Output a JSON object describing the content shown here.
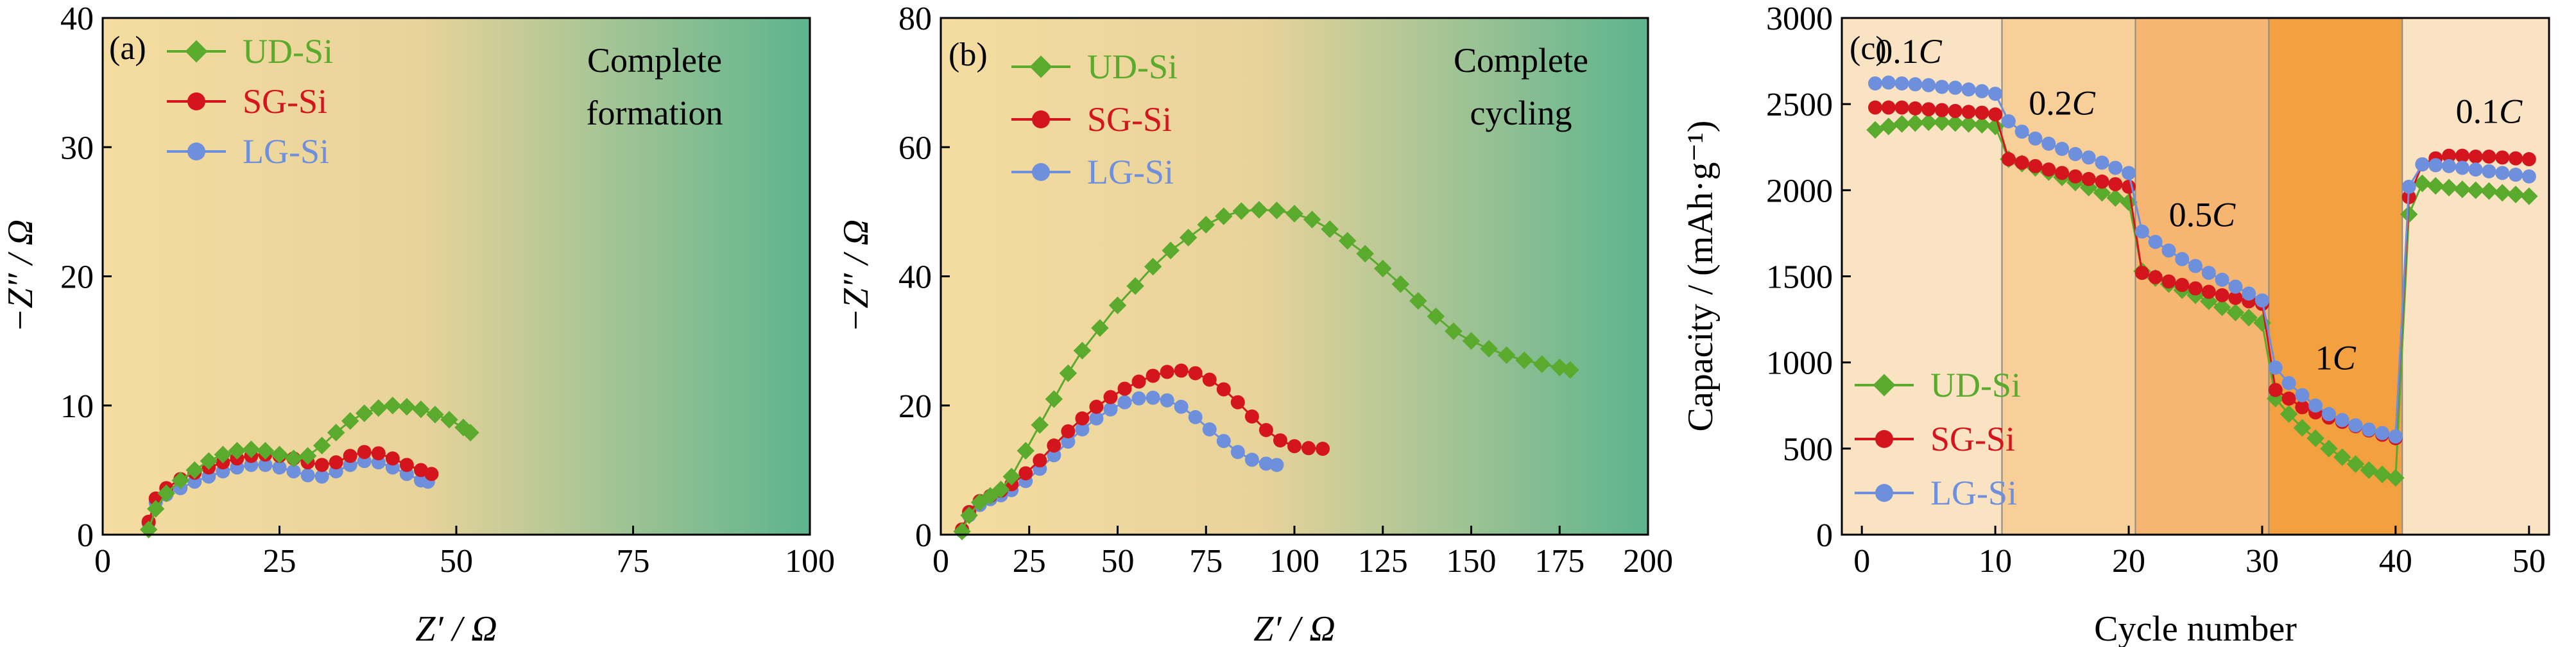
{
  "colors": {
    "UD-Si": "#5aaa2e",
    "SG-Si": "#d4151e",
    "LG-Si": "#6e8fdc",
    "bg_start": "#f5dca0",
    "bg_end": "#5cb48e",
    "rate_bands": [
      "#fae3c2",
      "#f8cf98",
      "#f6b672",
      "#f3a040",
      "#fae3c2"
    ]
  },
  "chart_data": [
    {
      "id": "a",
      "type": "scatter",
      "panel_label": "(a)",
      "annotation": [
        "Complete",
        "formation"
      ],
      "xlabel": "Z′ / Ω",
      "ylabel": "−Z″ / Ω",
      "xlim": [
        0,
        100
      ],
      "ylim": [
        0,
        40
      ],
      "xticks": [
        0,
        25,
        50,
        75,
        100
      ],
      "yticks": [
        0,
        10,
        20,
        30,
        40
      ],
      "legend_position": "top-left",
      "series": [
        {
          "name": "UD-Si",
          "marker": "diamond",
          "x": [
            6.5,
            7.5,
            9,
            11,
            13,
            15,
            17,
            19,
            21,
            23,
            25,
            27,
            29,
            31,
            33,
            35,
            37,
            39,
            41,
            43,
            45,
            47,
            49,
            51,
            52
          ],
          "y": [
            0.4,
            2.0,
            3.2,
            4.2,
            5.0,
            5.7,
            6.2,
            6.5,
            6.6,
            6.5,
            6.2,
            5.9,
            6.1,
            6.9,
            7.9,
            8.8,
            9.4,
            9.8,
            10.0,
            9.9,
            9.7,
            9.3,
            8.9,
            8.3,
            7.9
          ]
        },
        {
          "name": "SG-Si",
          "marker": "circle",
          "x": [
            6.5,
            7.5,
            9,
            11,
            13,
            15,
            17,
            19,
            21,
            23,
            25,
            27,
            29,
            31,
            33,
            35,
            37,
            39,
            41,
            43,
            45,
            46.5
          ],
          "y": [
            1.0,
            2.8,
            3.6,
            4.3,
            4.8,
            5.2,
            5.6,
            5.9,
            6.1,
            6.2,
            6.1,
            5.9,
            5.6,
            5.4,
            5.6,
            6.1,
            6.4,
            6.3,
            5.9,
            5.4,
            5.0,
            4.7
          ]
        },
        {
          "name": "LG-Si",
          "marker": "circle",
          "x": [
            6.5,
            7.5,
            9,
            11,
            13,
            15,
            17,
            19,
            21,
            23,
            25,
            27,
            29,
            31,
            33,
            35,
            37,
            39,
            41,
            43,
            45,
            46
          ],
          "y": [
            0.9,
            2.5,
            3.1,
            3.6,
            4.1,
            4.5,
            4.9,
            5.2,
            5.4,
            5.4,
            5.2,
            4.9,
            4.6,
            4.5,
            4.9,
            5.4,
            5.7,
            5.6,
            5.2,
            4.7,
            4.2,
            4.1
          ]
        }
      ]
    },
    {
      "id": "b",
      "type": "scatter",
      "panel_label": "(b)",
      "annotation": [
        "Complete",
        "cycling"
      ],
      "xlabel": "Z′ / Ω",
      "ylabel": "−Z″ / Ω",
      "xlim": [
        0,
        200
      ],
      "ylim": [
        0,
        80
      ],
      "xticks": [
        0,
        25,
        50,
        75,
        100,
        125,
        150,
        175,
        200
      ],
      "yticks": [
        0,
        20,
        40,
        60,
        80
      ],
      "legend_position": "top-left",
      "series": [
        {
          "name": "UD-Si",
          "marker": "diamond",
          "x": [
            6,
            8,
            11,
            14,
            17,
            20,
            24,
            28,
            32,
            36,
            40,
            45,
            50,
            55,
            60,
            65,
            70,
            75,
            80,
            85,
            90,
            95,
            100,
            105,
            110,
            115,
            120,
            125,
            130,
            135,
            140,
            145,
            150,
            155,
            160,
            165,
            170,
            175,
            178
          ],
          "y": [
            0.5,
            3,
            5,
            6,
            7,
            9,
            13,
            17,
            21,
            25,
            28.5,
            32,
            35.5,
            38.5,
            41.5,
            44,
            46,
            48,
            49.3,
            50.1,
            50.3,
            50.2,
            49.7,
            48.8,
            47.3,
            45.5,
            43.5,
            41.2,
            38.8,
            36.2,
            33.8,
            31.5,
            30,
            28.8,
            27.8,
            27,
            26.4,
            25.9,
            25.5
          ]
        },
        {
          "name": "SG-Si",
          "marker": "circle",
          "x": [
            6,
            8,
            11,
            14,
            17,
            20,
            24,
            28,
            32,
            36,
            40,
            44,
            48,
            52,
            56,
            60,
            64,
            68,
            72,
            76,
            80,
            84,
            88,
            92,
            96,
            100,
            104,
            108
          ],
          "y": [
            0.8,
            3.5,
            5.2,
            6.0,
            6.8,
            7.8,
            9.5,
            11.5,
            13.8,
            16.0,
            18.0,
            19.8,
            21.3,
            22.6,
            23.7,
            24.6,
            25.2,
            25.4,
            25.0,
            24.0,
            22.5,
            20.5,
            18.3,
            16.2,
            14.6,
            13.7,
            13.4,
            13.3
          ]
        },
        {
          "name": "LG-Si",
          "marker": "circle",
          "x": [
            6,
            8,
            11,
            14,
            17,
            20,
            24,
            28,
            32,
            36,
            40,
            44,
            48,
            52,
            56,
            60,
            64,
            68,
            72,
            76,
            80,
            84,
            88,
            92,
            95
          ],
          "y": [
            0.6,
            3.0,
            4.6,
            5.5,
            6.1,
            6.9,
            8.3,
            10.2,
            12.3,
            14.4,
            16.3,
            18.0,
            19.4,
            20.5,
            21.1,
            21.2,
            20.8,
            19.8,
            18.2,
            16.3,
            14.5,
            12.8,
            11.6,
            11.0,
            10.8
          ]
        }
      ]
    },
    {
      "id": "c",
      "type": "scatter",
      "panel_label": "(c)",
      "xlabel": "Cycle number",
      "ylabel": "Capacity / (mAh·g⁻¹)",
      "xlim": [
        -1.5,
        51.5
      ],
      "ylim": [
        0,
        3000
      ],
      "xticks": [
        0,
        10,
        20,
        30,
        40,
        50
      ],
      "yticks": [
        0,
        500,
        1000,
        1500,
        2000,
        2500,
        3000
      ],
      "legend_position": "bottom-left",
      "rate_regions": [
        {
          "from": -1.5,
          "to": 10.5,
          "label_num": "0.1",
          "label_unit": "C",
          "label_x": 3.5,
          "label_y": 2740
        },
        {
          "from": 10.5,
          "to": 20.5,
          "label_num": "0.2",
          "label_unit": "C",
          "label_x": 15,
          "label_y": 2440
        },
        {
          "from": 20.5,
          "to": 30.5,
          "label_num": "0.5",
          "label_unit": "C",
          "label_x": 25.5,
          "label_y": 1790
        },
        {
          "from": 30.5,
          "to": 40.5,
          "label_num": "1",
          "label_unit": "C",
          "label_x": 35.5,
          "label_y": 960
        },
        {
          "from": 40.5,
          "to": 51.5,
          "label_num": "0.1",
          "label_unit": "C",
          "label_x": 47,
          "label_y": 2390
        }
      ],
      "x": [
        1,
        2,
        3,
        4,
        5,
        6,
        7,
        8,
        9,
        10,
        11,
        12,
        13,
        14,
        15,
        16,
        17,
        18,
        19,
        20,
        21,
        22,
        23,
        24,
        25,
        26,
        27,
        28,
        29,
        30,
        31,
        32,
        33,
        34,
        35,
        36,
        37,
        38,
        39,
        40,
        41,
        42,
        43,
        44,
        45,
        46,
        47,
        48,
        49,
        50
      ],
      "series": [
        {
          "name": "UD-Si",
          "marker": "diamond",
          "values": [
            2350,
            2370,
            2385,
            2390,
            2395,
            2395,
            2390,
            2385,
            2380,
            2370,
            2180,
            2155,
            2130,
            2105,
            2075,
            2045,
            2015,
            1985,
            1955,
            1930,
            1530,
            1490,
            1455,
            1420,
            1390,
            1355,
            1320,
            1290,
            1260,
            1230,
            790,
            700,
            620,
            560,
            500,
            450,
            410,
            375,
            350,
            330,
            1860,
            2040,
            2025,
            2015,
            2005,
            2000,
            1995,
            1985,
            1975,
            1965
          ]
        },
        {
          "name": "SG-Si",
          "marker": "circle",
          "values": [
            2480,
            2480,
            2480,
            2475,
            2470,
            2465,
            2460,
            2455,
            2450,
            2440,
            2180,
            2160,
            2140,
            2120,
            2100,
            2080,
            2065,
            2050,
            2035,
            2020,
            1520,
            1495,
            1470,
            1450,
            1430,
            1410,
            1390,
            1375,
            1355,
            1340,
            840,
            790,
            740,
            710,
            680,
            655,
            630,
            605,
            580,
            560,
            1960,
            2150,
            2185,
            2200,
            2200,
            2195,
            2195,
            2190,
            2185,
            2180
          ]
        },
        {
          "name": "LG-Si",
          "marker": "circle",
          "values": [
            2620,
            2625,
            2620,
            2615,
            2610,
            2600,
            2595,
            2585,
            2575,
            2560,
            2400,
            2340,
            2300,
            2270,
            2240,
            2210,
            2190,
            2160,
            2130,
            2100,
            1760,
            1700,
            1650,
            1600,
            1560,
            1520,
            1480,
            1440,
            1400,
            1360,
            970,
            880,
            810,
            750,
            700,
            665,
            635,
            610,
            590,
            570,
            2020,
            2150,
            2145,
            2140,
            2130,
            2120,
            2110,
            2100,
            2090,
            2080
          ]
        }
      ]
    }
  ]
}
